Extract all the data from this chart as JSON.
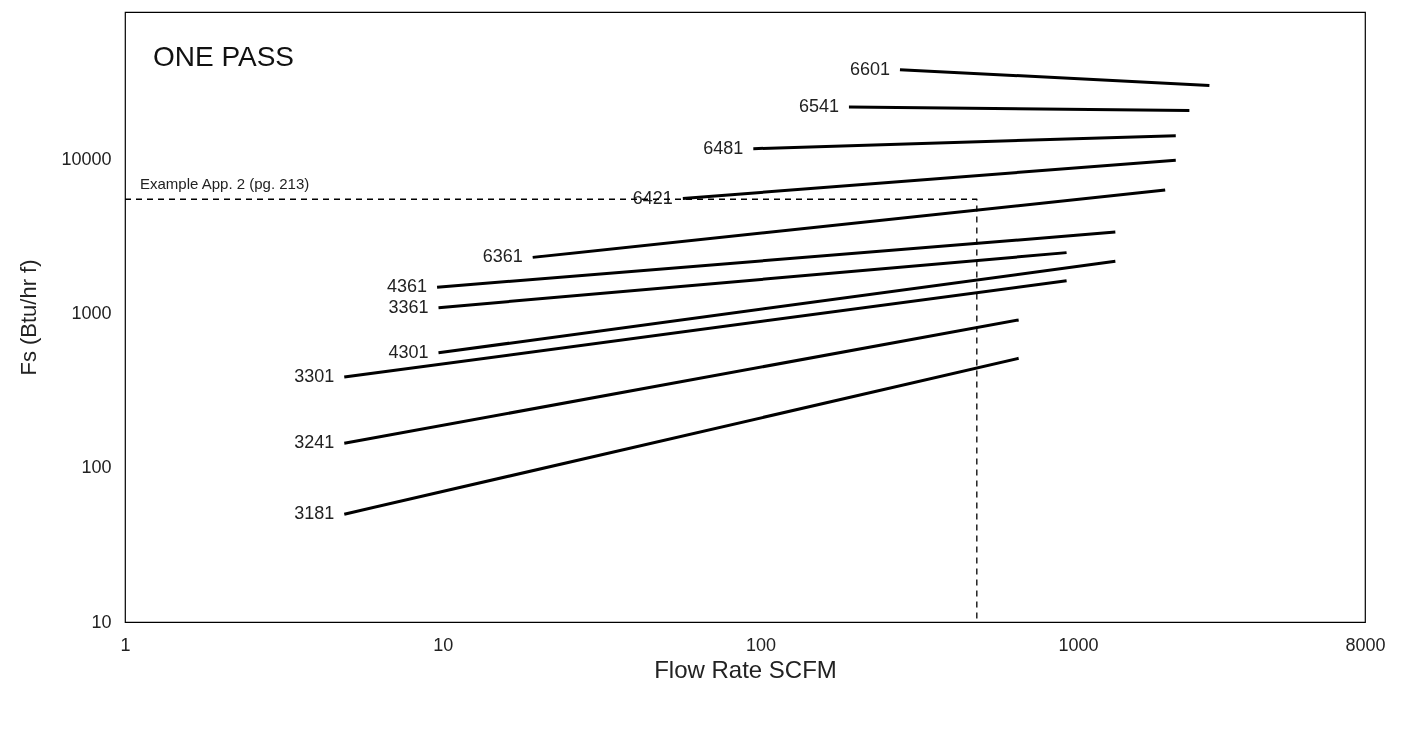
{
  "chart_data": {
    "type": "line",
    "title": "ONE PASS",
    "xlabel": "Flow Rate SCFM",
    "ylabel": "Fs (Btu/hr f)",
    "log": "xy",
    "xlim": [
      1,
      8000
    ],
    "ylim": [
      10,
      90000
    ],
    "xticks": [
      1,
      10,
      100,
      1000,
      8000
    ],
    "yticks": [
      10,
      100,
      1000,
      10000
    ],
    "grid": false,
    "line_style": "solid",
    "series": [
      {
        "name": "6601",
        "color": "#000000",
        "x": [
          275,
          2590
        ],
        "values": [
          38000,
          30100
        ]
      },
      {
        "name": "6541",
        "color": "#000000",
        "x": [
          190,
          2240
        ],
        "values": [
          21800,
          20700
        ]
      },
      {
        "name": "6481",
        "color": "#000000",
        "x": [
          95,
          2030
        ],
        "values": [
          11700,
          14200
        ]
      },
      {
        "name": "6421",
        "color": "#000000",
        "x": [
          57,
          2030
        ],
        "values": [
          5560,
          9860
        ]
      },
      {
        "name": "6361",
        "color": "#000000",
        "x": [
          19.2,
          1880
        ],
        "values": [
          2310,
          6310
        ]
      },
      {
        "name": "4361",
        "color": "#000000",
        "x": [
          9.6,
          1310
        ],
        "values": [
          1480,
          3370
        ]
      },
      {
        "name": "3361",
        "color": "#000000",
        "x": [
          9.7,
          920
        ],
        "values": [
          1090,
          2480
        ]
      },
      {
        "name": "4301",
        "color": "#000000",
        "x": [
          9.7,
          1310
        ],
        "values": [
          556,
          2180
        ]
      },
      {
        "name": "3301",
        "color": "#000000",
        "x": [
          4.9,
          920
        ],
        "values": [
          387,
          1630
        ]
      },
      {
        "name": "3241",
        "color": "#000000",
        "x": [
          4.9,
          650
        ],
        "values": [
          144,
          908
        ]
      },
      {
        "name": "3181",
        "color": "#000000",
        "x": [
          4.9,
          650
        ],
        "values": [
          50,
          512
        ]
      },
      {
        "color": "#000000",
        "line_style": "dashed",
        "x": [
          1,
          480,
          480
        ],
        "values": [
          5500,
          5500,
          10
        ]
      }
    ],
    "annotations": [
      "Example App. 2 (pg. 213)"
    ]
  }
}
